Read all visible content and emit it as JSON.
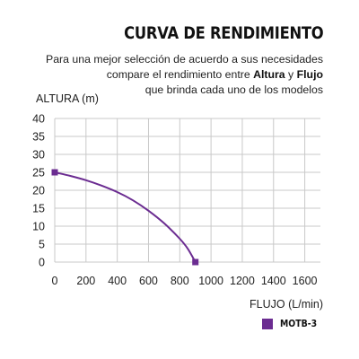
{
  "header": {
    "title": "CURVA DE RENDIMIENTO",
    "desc_line1": "Para una mejor selección de acuerdo a sus necesidades",
    "desc_line2_pre": "compare el rendimiento entre ",
    "desc_bold1": "Altura",
    "desc_line2_mid": " y ",
    "desc_bold2": "Flujo",
    "desc_line3": "que brinda cada uno de los modelos"
  },
  "colors": {
    "series": "#6b2c91",
    "grid": "#c9c9c9",
    "axis_text": "#222222"
  },
  "chart_data": {
    "type": "line",
    "xlabel": "FLUJO (L/min)",
    "ylabel": "ALTURA (m)",
    "xlim": [
      0,
      1700
    ],
    "ylim": [
      0,
      40
    ],
    "xticks": [
      0,
      200,
      400,
      600,
      800,
      1000,
      1200,
      1400,
      1600
    ],
    "yticks": [
      0,
      5,
      10,
      15,
      20,
      25,
      30,
      35,
      40
    ],
    "grid": true,
    "legend_position": "bottom-right",
    "series": [
      {
        "name": "MOTB-3",
        "x": [
          0,
          100,
          200,
          300,
          400,
          500,
          600,
          700,
          800,
          850,
          900
        ],
        "y": [
          25,
          24,
          22.8,
          21.3,
          19.5,
          17.2,
          14.3,
          10.8,
          6.5,
          3.8,
          0
        ]
      }
    ]
  }
}
